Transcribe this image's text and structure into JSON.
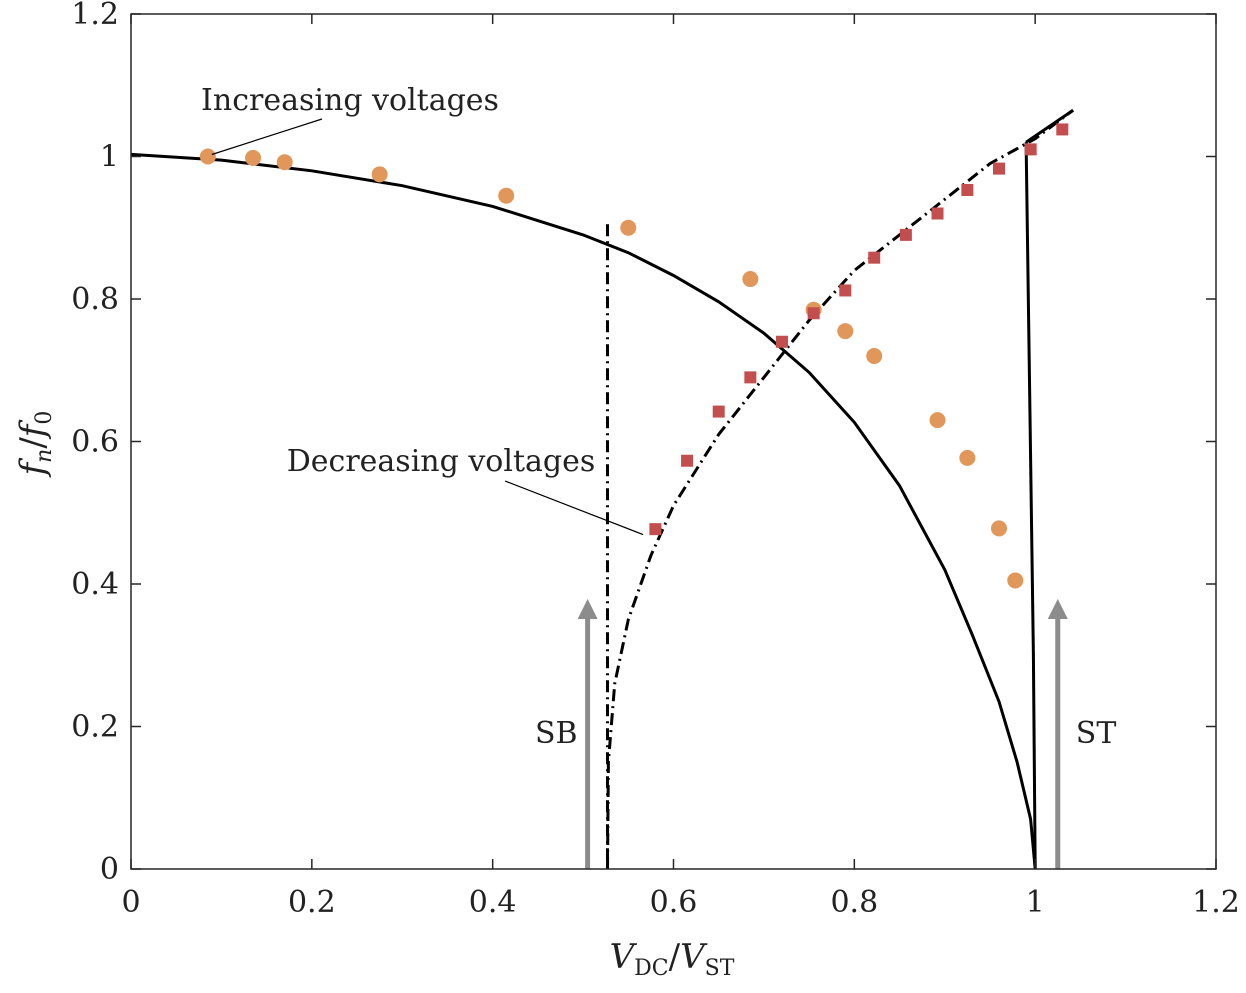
{
  "chart_data": {
    "type": "scatter",
    "title": "",
    "xlabel": {
      "main": "V",
      "sub1": "DC",
      "slash": "/",
      "main2": "V",
      "sub2": "ST"
    },
    "ylabel": {
      "f1": "f",
      "sub1": "n",
      "slash": "/",
      "f2": "f",
      "sub2": "0"
    },
    "xlim": [
      0,
      1.2
    ],
    "ylim": [
      0,
      1.2
    ],
    "xticks": [
      0,
      0.2,
      0.4,
      0.6,
      0.8,
      1,
      1.2
    ],
    "yticks": [
      0,
      0.2,
      0.4,
      0.6,
      0.8,
      1,
      1.2
    ],
    "xtick_labels": [
      "0",
      "0.2",
      "0.4",
      "0.6",
      "0.8",
      "1",
      "1.2"
    ],
    "ytick_labels": [
      "0",
      "0.2",
      "0.4",
      "0.6",
      "0.8",
      "1",
      "1.2"
    ],
    "grid": false,
    "colors": {
      "circles": "#E1975A",
      "squares": "#C24E4E",
      "arrow": "#8C8C8C",
      "line": "#000000"
    },
    "series": [
      {
        "name": "Increasing voltages",
        "marker": "circle",
        "x": [
          0.085,
          0.135,
          0.17,
          0.275,
          0.415,
          0.55,
          0.685,
          0.755,
          0.79,
          0.822,
          0.892,
          0.925,
          0.96,
          0.978
        ],
        "y": [
          1.0,
          0.998,
          0.992,
          0.975,
          0.945,
          0.9,
          0.828,
          0.785,
          0.755,
          0.72,
          0.63,
          0.577,
          0.478,
          0.405
        ]
      },
      {
        "name": "Decreasing voltages",
        "marker": "square",
        "x": [
          0.58,
          0.615,
          0.65,
          0.685,
          0.72,
          0.755,
          0.79,
          0.822,
          0.857,
          0.892,
          0.925,
          0.96,
          0.995,
          1.03
        ],
        "y": [
          0.477,
          0.573,
          0.642,
          0.69,
          0.74,
          0.78,
          0.812,
          0.858,
          0.89,
          0.92,
          0.953,
          0.983,
          1.01,
          1.038
        ]
      }
    ],
    "lines": [
      {
        "name": "increasing-sweep-curve",
        "style": "solid",
        "points": [
          [
            0,
            1.003
          ],
          [
            0.1,
            0.995
          ],
          [
            0.2,
            0.98
          ],
          [
            0.3,
            0.959
          ],
          [
            0.4,
            0.93
          ],
          [
            0.5,
            0.89
          ],
          [
            0.55,
            0.865
          ],
          [
            0.6,
            0.833
          ],
          [
            0.65,
            0.796
          ],
          [
            0.7,
            0.752
          ],
          [
            0.75,
            0.697
          ],
          [
            0.8,
            0.627
          ],
          [
            0.85,
            0.538
          ],
          [
            0.9,
            0.42
          ],
          [
            0.93,
            0.33
          ],
          [
            0.96,
            0.235
          ],
          [
            0.98,
            0.15
          ],
          [
            0.995,
            0.07
          ],
          [
            1.0,
            0
          ]
        ]
      },
      {
        "name": "decreasing-sweep-curve",
        "style": "dashdot",
        "points": [
          [
            0.527,
            0
          ],
          [
            0.528,
            0.15
          ],
          [
            0.535,
            0.26
          ],
          [
            0.55,
            0.35
          ],
          [
            0.575,
            0.44
          ],
          [
            0.6,
            0.51
          ],
          [
            0.65,
            0.61
          ],
          [
            0.7,
            0.69
          ],
          [
            0.75,
            0.77
          ],
          [
            0.8,
            0.84
          ],
          [
            0.85,
            0.89
          ],
          [
            0.9,
            0.94
          ],
          [
            0.95,
            0.99
          ],
          [
            1.0,
            1.025
          ],
          [
            1.042,
            1.065
          ]
        ]
      },
      {
        "name": "upper-branch-line",
        "style": "solid",
        "points": [
          [
            0.99,
            1.02
          ],
          [
            1.042,
            1.065
          ]
        ]
      },
      {
        "name": "snap-through-jump",
        "style": "solid",
        "points": [
          [
            0.99,
            1.02
          ],
          [
            0.998,
            0.3
          ],
          [
            1.0,
            0
          ]
        ]
      },
      {
        "name": "snap-back-jump",
        "style": "dashdot",
        "points": [
          [
            0.527,
            0.905
          ],
          [
            0.527,
            0
          ]
        ]
      }
    ],
    "annotations": [
      {
        "text": "Increasing voltages",
        "target_x": 0.085,
        "target_y": 1.0
      },
      {
        "text": "Decreasing voltages",
        "target_x": 0.573,
        "target_y": 0.475
      },
      {
        "text": "SB",
        "arrow_x": 0.505,
        "arrow_from_y": 0,
        "arrow_to_y": 0.365
      },
      {
        "text": "ST",
        "arrow_x": 1.025,
        "arrow_from_y": 0,
        "arrow_to_y": 0.365
      }
    ]
  }
}
